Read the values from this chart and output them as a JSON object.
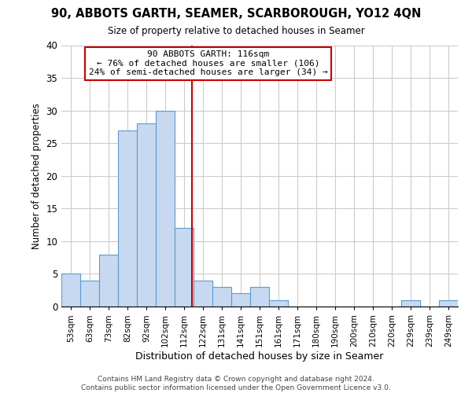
{
  "title": "90, ABBOTS GARTH, SEAMER, SCARBOROUGH, YO12 4QN",
  "subtitle": "Size of property relative to detached houses in Seamer",
  "xlabel": "Distribution of detached houses by size in Seamer",
  "ylabel": "Number of detached properties",
  "bar_labels": [
    "53sqm",
    "63sqm",
    "73sqm",
    "82sqm",
    "92sqm",
    "102sqm",
    "112sqm",
    "122sqm",
    "131sqm",
    "141sqm",
    "151sqm",
    "161sqm",
    "171sqm",
    "180sqm",
    "190sqm",
    "200sqm",
    "210sqm",
    "220sqm",
    "229sqm",
    "239sqm",
    "249sqm"
  ],
  "bar_heights": [
    5,
    4,
    8,
    27,
    28,
    30,
    12,
    4,
    3,
    2,
    3,
    1,
    0,
    0,
    0,
    0,
    0,
    0,
    1,
    0,
    1
  ],
  "bar_color": "#c7d9f0",
  "bar_edge_color": "#5b9bd5",
  "marker_label": "90 ABBOTS GARTH: 116sqm",
  "annotation_line1": "← 76% of detached houses are smaller (106)",
  "annotation_line2": "24% of semi-detached houses are larger (34) →",
  "marker_color": "#cc0000",
  "ylim": [
    0,
    40
  ],
  "yticks": [
    0,
    5,
    10,
    15,
    20,
    25,
    30,
    35,
    40
  ],
  "footer_line1": "Contains HM Land Registry data © Crown copyright and database right 2024.",
  "footer_line2": "Contains public sector information licensed under the Open Government Licence v3.0.",
  "background_color": "#ffffff",
  "grid_color": "#cccccc"
}
